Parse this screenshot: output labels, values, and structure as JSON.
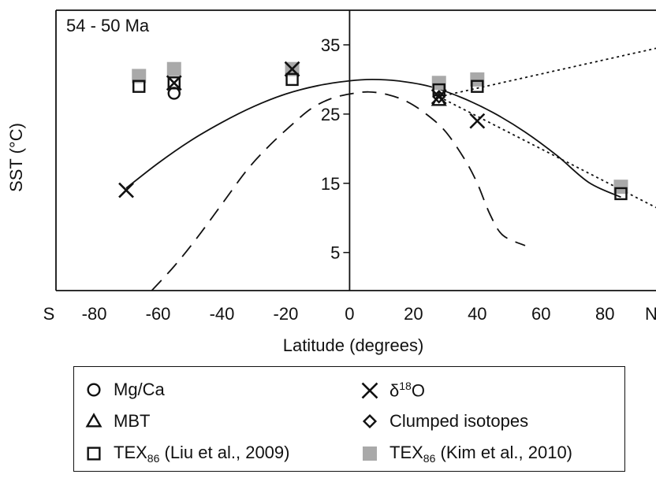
{
  "chart_data": {
    "type": "scatter",
    "panel_label": "54 - 50 Ma",
    "xlabel": "Latitude (degrees)",
    "ylabel": "SST (°C)",
    "xlim": [
      -92,
      96
    ],
    "ylim": [
      -0.5,
      40
    ],
    "x_ticks": [
      -80,
      -60,
      -40,
      -20,
      0,
      20,
      40,
      60,
      80
    ],
    "x_tick_labels": [
      "-80",
      "-60",
      "-40",
      "-20",
      "0",
      "20",
      "40",
      "60",
      "80"
    ],
    "x_end_labels": {
      "left": "S",
      "right": "N"
    },
    "y_ticks": [
      5,
      15,
      25,
      35
    ],
    "y_tick_labels": [
      "5",
      "15",
      "25",
      "35"
    ],
    "series": [
      {
        "name": "Mg/Ca",
        "marker": "circle",
        "points": [
          [
            -55,
            28
          ]
        ]
      },
      {
        "name": "δ18O",
        "marker": "x",
        "points": [
          [
            -70,
            14
          ],
          [
            -55,
            29.5
          ],
          [
            -18,
            31.5
          ],
          [
            28,
            27.5
          ],
          [
            40,
            24
          ]
        ]
      },
      {
        "name": "MBT",
        "marker": "triangle",
        "points": [
          [
            28,
            27
          ]
        ]
      },
      {
        "name": "Clumped isotopes",
        "marker": "diamond",
        "points": [
          [
            28,
            27.5
          ]
        ]
      },
      {
        "name": "TEX86 (Liu et al., 2009)",
        "marker": "square-open",
        "points": [
          [
            -66,
            29
          ],
          [
            -55,
            29.5
          ],
          [
            -18,
            30
          ],
          [
            28,
            28.5
          ],
          [
            40,
            29
          ],
          [
            85,
            13.5
          ]
        ]
      },
      {
        "name": "TEX86 (Kim et al., 2010)",
        "marker": "square-filled",
        "color": "#a9a9a9",
        "points": [
          [
            -66,
            30.5
          ],
          [
            -55,
            31.5
          ],
          [
            -18,
            31.5
          ],
          [
            28,
            29.5
          ],
          [
            40,
            30
          ],
          [
            85,
            14.5
          ]
        ]
      }
    ],
    "lines": [
      {
        "name": "fitted curve",
        "style": "solid",
        "x": [
          -70,
          -60,
          -50,
          -40,
          -30,
          -20,
          -10,
          0,
          7,
          15,
          25,
          35,
          45,
          55,
          65,
          75,
          85
        ],
        "y": [
          14.3,
          17.9,
          21.1,
          23.8,
          26.1,
          27.9,
          29.1,
          29.8,
          30.0,
          29.8,
          29.0,
          27.4,
          25.2,
          22.4,
          19.0,
          15.1,
          13.0
        ]
      },
      {
        "name": "modern SST",
        "style": "dashed",
        "x": [
          -62,
          -55,
          -48,
          -40,
          -32,
          -25,
          -18,
          -12,
          -6,
          0,
          6,
          12,
          18,
          24,
          30,
          36,
          40,
          44,
          48,
          55
        ],
        "y": [
          -0.5,
          3.0,
          7.0,
          12.0,
          17.0,
          20.5,
          23.5,
          25.8,
          27.2,
          27.9,
          28.2,
          27.8,
          26.8,
          25.0,
          22.5,
          18.5,
          15.0,
          10.5,
          7.5,
          6.0
        ]
      },
      {
        "name": "dotted trend upper",
        "style": "dotted",
        "x": [
          28,
          96
        ],
        "y": [
          27.5,
          34.5
        ]
      },
      {
        "name": "dotted trend lower",
        "style": "dotted",
        "x": [
          28,
          96
        ],
        "y": [
          27.5,
          11.5
        ]
      }
    ],
    "legend": {
      "position": "bottom",
      "items": [
        {
          "marker": "circle",
          "label": "Mg/Ca",
          "sub": "",
          "label_end": ""
        },
        {
          "marker": "x",
          "label": "δ",
          "sup": "18",
          "label_end": "O"
        },
        {
          "marker": "triangle",
          "label": "MBT",
          "sub": "",
          "label_end": ""
        },
        {
          "marker": "diamond",
          "label": "Clumped isotopes",
          "sub": "",
          "label_end": ""
        },
        {
          "marker": "square-open",
          "label": "TEX",
          "sub": "86",
          "label_end": " (Liu et al., 2009)"
        },
        {
          "marker": "square-filled",
          "label": "TEX",
          "sub": "86",
          "label_end": " (Kim et al., 2010)"
        }
      ]
    }
  }
}
